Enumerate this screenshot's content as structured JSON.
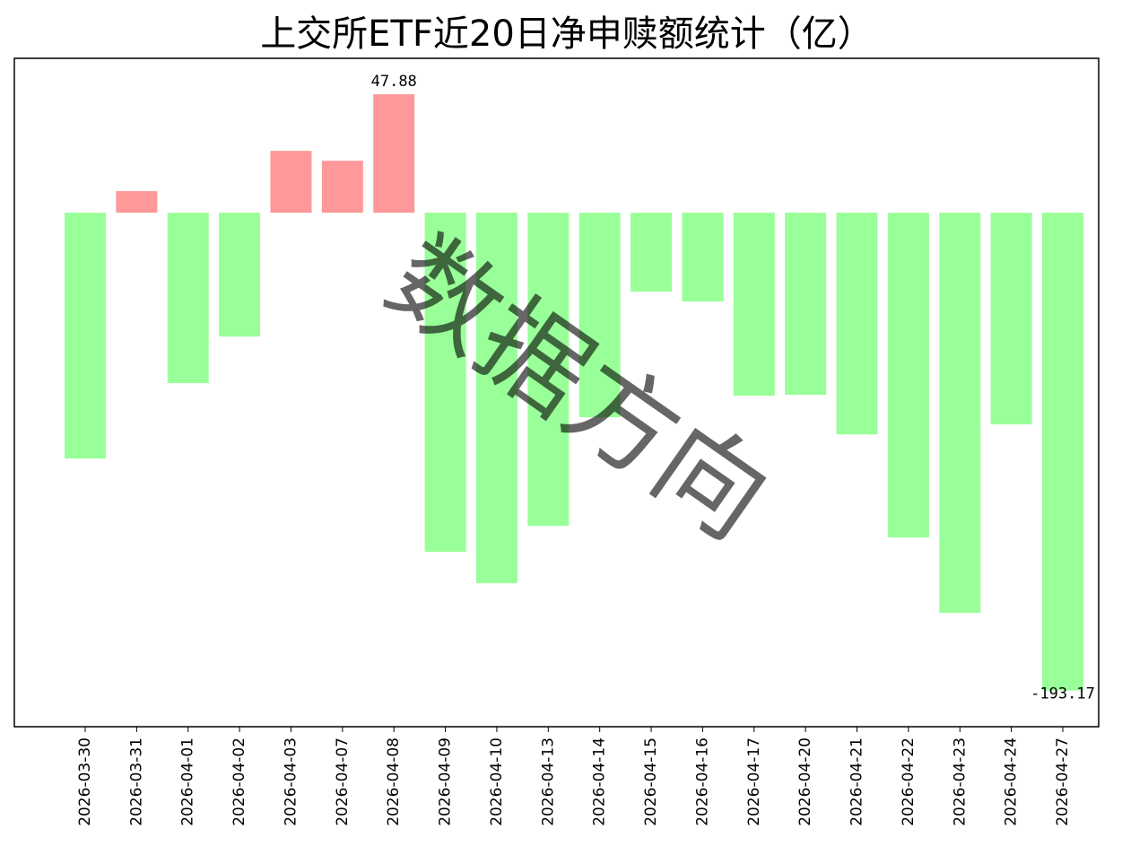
{
  "chart_data": {
    "type": "bar",
    "title": "上交所ETF近20日净申赎额统计（亿）",
    "categories": [
      "2026-03-30",
      "2026-03-31",
      "2026-04-01",
      "2026-04-02",
      "2026-04-03",
      "2026-04-07",
      "2026-04-08",
      "2026-04-09",
      "2026-04-10",
      "2026-04-13",
      "2026-04-14",
      "2026-04-15",
      "2026-04-16",
      "2026-04-17",
      "2026-04-20",
      "2026-04-21",
      "2026-04-22",
      "2026-04-23",
      "2026-04-24",
      "2026-04-27"
    ],
    "values": [
      -99.4,
      8.7,
      -68.9,
      -50.1,
      25.0,
      21.0,
      47.88,
      -137.1,
      -149.8,
      -126.6,
      -82.7,
      -31.9,
      -35.9,
      -74.0,
      -73.6,
      -89.6,
      -131.3,
      -161.8,
      -85.6,
      -193.17
    ],
    "value_labels": [
      null,
      null,
      null,
      null,
      null,
      null,
      "47.88",
      null,
      null,
      null,
      null,
      null,
      null,
      null,
      null,
      null,
      null,
      null,
      null,
      "-193.17"
    ],
    "positive_color": "#ff9999",
    "negative_color": "#99ff99",
    "ylim": [
      -207.8,
      62.4
    ],
    "watermark": "数据方向"
  }
}
